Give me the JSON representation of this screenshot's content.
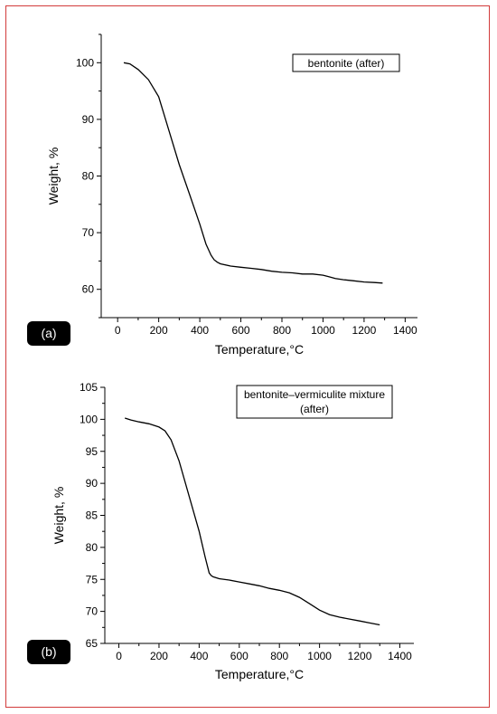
{
  "chart_data": [
    {
      "type": "line",
      "panel_label": "(a)",
      "legend": "bentonite (after)",
      "xlabel": "Temperature,°C",
      "ylabel": "Weight, %",
      "xlim": [
        -80,
        1460
      ],
      "ylim": [
        55,
        105
      ],
      "xticks": [
        0,
        200,
        400,
        600,
        800,
        1000,
        1200,
        1400
      ],
      "yticks": [
        60,
        70,
        80,
        90,
        100
      ],
      "series": [
        {
          "x": [
            30,
            60,
            100,
            150,
            200,
            250,
            300,
            350,
            400,
            430,
            455,
            470,
            485,
            500,
            550,
            600,
            650,
            700,
            750,
            800,
            850,
            900,
            950,
            1000,
            1030,
            1060,
            1100,
            1150,
            1200,
            1250,
            1290
          ],
          "y": [
            100.0,
            99.8,
            98.8,
            97.0,
            94.0,
            88.0,
            82.0,
            76.8,
            71.5,
            68.0,
            66.0,
            65.2,
            64.8,
            64.5,
            64.1,
            63.9,
            63.7,
            63.5,
            63.2,
            63.0,
            62.9,
            62.7,
            62.7,
            62.5,
            62.2,
            61.9,
            61.7,
            61.5,
            61.3,
            61.2,
            61.1
          ]
        }
      ]
    },
    {
      "type": "line",
      "panel_label": "(b)",
      "legend": "bentonite–vermiculite mixture (after)",
      "legend_lines": [
        "bentonite–vermiculite mixture",
        "(after)"
      ],
      "xlabel": "Temperature,°C",
      "ylabel": "Weight, %",
      "xlim": [
        -70,
        1470
      ],
      "ylim": [
        65,
        105
      ],
      "xticks": [
        0,
        200,
        400,
        600,
        800,
        1000,
        1200,
        1400
      ],
      "yticks": [
        65,
        70,
        75,
        80,
        85,
        90,
        95,
        100,
        105
      ],
      "series": [
        {
          "x": [
            30,
            60,
            100,
            150,
            200,
            230,
            260,
            300,
            350,
            400,
            430,
            450,
            460,
            470,
            500,
            550,
            600,
            650,
            700,
            750,
            800,
            850,
            900,
            950,
            1000,
            1050,
            1100,
            1150,
            1200,
            1250,
            1300
          ],
          "y": [
            100.2,
            99.9,
            99.6,
            99.3,
            98.8,
            98.2,
            96.8,
            93.5,
            88.0,
            82.5,
            78.5,
            76.0,
            75.6,
            75.4,
            75.1,
            74.9,
            74.6,
            74.3,
            74.0,
            73.6,
            73.3,
            72.9,
            72.2,
            71.2,
            70.2,
            69.5,
            69.1,
            68.8,
            68.5,
            68.2,
            67.9
          ]
        }
      ]
    }
  ]
}
